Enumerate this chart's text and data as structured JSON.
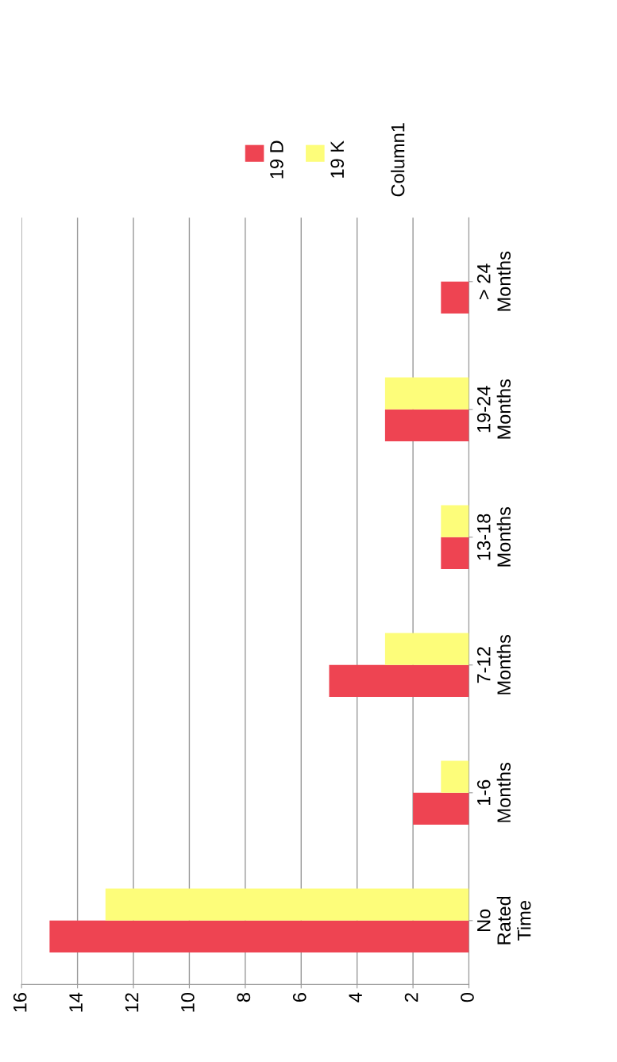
{
  "chart_data": {
    "type": "bar",
    "orientation": "horizontal",
    "categories": [
      "> 24\nMonths",
      "19-24\nMonths",
      "13-18\nMonths",
      "7-12\nMonths",
      "1-6\nMonths",
      "No\nRated\nTime"
    ],
    "series": [
      {
        "name": "19 D",
        "color": "#ee4452",
        "values": [
          1,
          3,
          1,
          5,
          2,
          15
        ]
      },
      {
        "name": "19 K",
        "color": "#fdfd7a",
        "values": [
          0,
          3,
          1,
          3,
          1,
          13
        ]
      },
      {
        "name": "Column1",
        "values": [
          null,
          null,
          null,
          null,
          null,
          null
        ]
      }
    ],
    "xlim": [
      16,
      0
    ],
    "xticks": [
      16,
      14,
      12,
      10,
      8,
      6,
      4,
      2,
      0
    ],
    "grid": "x",
    "legend": "top right"
  }
}
